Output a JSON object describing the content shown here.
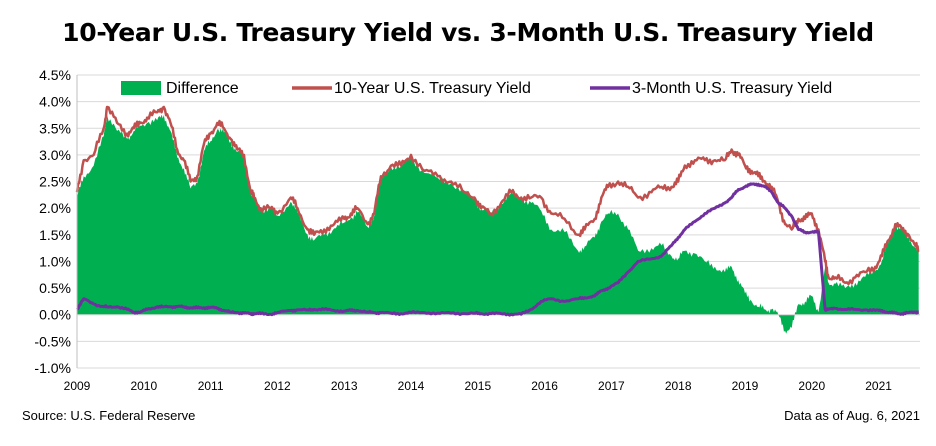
{
  "chart_data": {
    "type": "line",
    "title": "10-Year U.S. Treasury Yield vs. 3-Month U.S. Treasury Yield",
    "xlabel": "",
    "ylabel": "",
    "ylim": [
      -1.0,
      4.5
    ],
    "yticks": [
      "4.5%",
      "4.0%",
      "3.5%",
      "3.0%",
      "2.5%",
      "2.0%",
      "1.5%",
      "1.0%",
      "0.5%",
      "0.0%",
      "-0.5%",
      "-1.0%"
    ],
    "ytick_values": [
      4.5,
      4.0,
      3.5,
      3.0,
      2.5,
      2.0,
      1.5,
      1.0,
      0.5,
      0.0,
      -0.5,
      -1.0
    ],
    "xticks": [
      "2009",
      "2010",
      "2011",
      "2012",
      "2013",
      "2014",
      "2015",
      "2016",
      "2017",
      "2018",
      "2019",
      "2020",
      "2021"
    ],
    "xtick_values": [
      2009,
      2010,
      2011,
      2012,
      2013,
      2014,
      2015,
      2016,
      2017,
      2018,
      2019,
      2020,
      2021
    ],
    "xlim": [
      2009.0,
      2021.62
    ],
    "grid": "horizontal",
    "legend": "top",
    "source": "Source: U.S. Federal Reserve",
    "note": "Data as of Aug. 6, 2021",
    "colors": {
      "difference": "#00b050",
      "ten_year": "#c0504d",
      "three_month": "#7030a0"
    },
    "x": [
      2009.0,
      2009.1,
      2009.25,
      2009.4,
      2009.45,
      2009.6,
      2009.75,
      2009.85,
      2009.95,
      2010.05,
      2010.2,
      2010.3,
      2010.4,
      2010.5,
      2010.6,
      2010.7,
      2010.8,
      2010.9,
      2011.0,
      2011.1,
      2011.2,
      2011.3,
      2011.4,
      2011.5,
      2011.6,
      2011.65,
      2011.75,
      2011.9,
      2012.0,
      2012.2,
      2012.3,
      2012.45,
      2012.55,
      2012.7,
      2012.85,
      2013.0,
      2013.1,
      2013.2,
      2013.35,
      2013.45,
      2013.55,
      2013.7,
      2013.85,
      2014.0,
      2014.2,
      2014.4,
      2014.6,
      2014.8,
      2014.95,
      2015.05,
      2015.2,
      2015.35,
      2015.5,
      2015.65,
      2015.8,
      2015.95,
      2016.1,
      2016.3,
      2016.5,
      2016.6,
      2016.75,
      2016.85,
      2016.95,
      2017.1,
      2017.25,
      2017.4,
      2017.6,
      2017.75,
      2017.9,
      2018.0,
      2018.1,
      2018.25,
      2018.4,
      2018.55,
      2018.7,
      2018.8,
      2018.9,
      2019.0,
      2019.1,
      2019.2,
      2019.3,
      2019.4,
      2019.5,
      2019.6,
      2019.7,
      2019.8,
      2019.9,
      2020.0,
      2020.1,
      2020.2,
      2020.25,
      2020.35,
      2020.5,
      2020.65,
      2020.8,
      2020.95,
      2021.05,
      2021.15,
      2021.25,
      2021.35,
      2021.45,
      2021.55,
      2021.6
    ],
    "series": [
      {
        "name": "10-Year U.S. Treasury Yield",
        "values": [
          2.3,
          2.9,
          3.0,
          3.5,
          3.9,
          3.6,
          3.4,
          3.5,
          3.6,
          3.7,
          3.8,
          3.9,
          3.6,
          3.1,
          2.9,
          2.5,
          2.6,
          3.2,
          3.4,
          3.6,
          3.5,
          3.3,
          3.1,
          3.0,
          2.3,
          2.2,
          2.0,
          2.0,
          1.9,
          2.2,
          2.0,
          1.6,
          1.5,
          1.6,
          1.7,
          1.8,
          1.9,
          2.0,
          1.7,
          1.9,
          2.6,
          2.8,
          2.8,
          3.0,
          2.7,
          2.6,
          2.5,
          2.3,
          2.2,
          2.0,
          1.9,
          2.1,
          2.3,
          2.2,
          2.2,
          2.2,
          1.9,
          1.8,
          1.5,
          1.6,
          1.8,
          2.2,
          2.4,
          2.5,
          2.4,
          2.2,
          2.3,
          2.4,
          2.4,
          2.5,
          2.8,
          2.9,
          2.9,
          2.9,
          2.9,
          3.1,
          3.0,
          2.8,
          2.7,
          2.6,
          2.5,
          2.4,
          2.1,
          1.7,
          1.6,
          1.8,
          1.8,
          1.9,
          1.6,
          1.0,
          0.7,
          0.7,
          0.6,
          0.7,
          0.8,
          0.9,
          1.1,
          1.4,
          1.7,
          1.6,
          1.5,
          1.3,
          1.2
        ]
      },
      {
        "name": "3-Month U.S. Treasury Yield",
        "values": [
          0.1,
          0.3,
          0.2,
          0.15,
          0.15,
          0.15,
          0.1,
          0.05,
          0.05,
          0.1,
          0.15,
          0.15,
          0.15,
          0.15,
          0.15,
          0.13,
          0.13,
          0.13,
          0.14,
          0.12,
          0.08,
          0.05,
          0.04,
          0.03,
          0.02,
          0.02,
          0.02,
          0.01,
          0.04,
          0.08,
          0.09,
          0.09,
          0.1,
          0.1,
          0.08,
          0.07,
          0.08,
          0.08,
          0.05,
          0.04,
          0.04,
          0.03,
          0.02,
          0.04,
          0.04,
          0.03,
          0.03,
          0.02,
          0.03,
          0.02,
          0.02,
          0.02,
          0.01,
          0.01,
          0.1,
          0.25,
          0.3,
          0.25,
          0.3,
          0.32,
          0.35,
          0.45,
          0.5,
          0.6,
          0.8,
          1.0,
          1.05,
          1.1,
          1.3,
          1.45,
          1.6,
          1.75,
          1.9,
          2.0,
          2.1,
          2.2,
          2.35,
          2.4,
          2.45,
          2.45,
          2.4,
          2.3,
          2.1,
          2.0,
          1.85,
          1.6,
          1.55,
          1.55,
          1.55,
          0.1,
          0.1,
          0.12,
          0.1,
          0.1,
          0.09,
          0.08,
          0.08,
          0.04,
          0.03,
          0.02,
          0.04,
          0.05,
          0.05
        ]
      },
      {
        "name": "Difference",
        "type": "area",
        "values": [
          2.2,
          2.6,
          2.8,
          3.35,
          3.75,
          3.45,
          3.3,
          3.45,
          3.55,
          3.6,
          3.65,
          3.75,
          3.45,
          2.95,
          2.75,
          2.37,
          2.47,
          3.07,
          3.26,
          3.48,
          3.42,
          3.25,
          3.06,
          2.97,
          2.28,
          2.18,
          1.98,
          1.99,
          1.86,
          2.12,
          1.91,
          1.51,
          1.4,
          1.5,
          1.62,
          1.73,
          1.82,
          1.92,
          1.65,
          1.86,
          2.56,
          2.77,
          2.78,
          2.96,
          2.66,
          2.57,
          2.47,
          2.28,
          2.17,
          1.98,
          1.88,
          2.08,
          2.29,
          2.19,
          2.1,
          1.95,
          1.6,
          1.55,
          1.2,
          1.28,
          1.45,
          1.75,
          1.9,
          1.9,
          1.6,
          1.2,
          1.25,
          1.3,
          1.1,
          1.05,
          1.2,
          1.15,
          1.0,
          0.9,
          0.8,
          0.9,
          0.65,
          0.4,
          0.25,
          0.15,
          0.1,
          0.1,
          0.0,
          -0.3,
          -0.25,
          0.2,
          0.25,
          0.35,
          0.05,
          0.9,
          0.6,
          0.58,
          0.5,
          0.6,
          0.71,
          0.82,
          1.02,
          1.36,
          1.67,
          1.58,
          1.46,
          1.25,
          1.15
        ]
      }
    ]
  }
}
